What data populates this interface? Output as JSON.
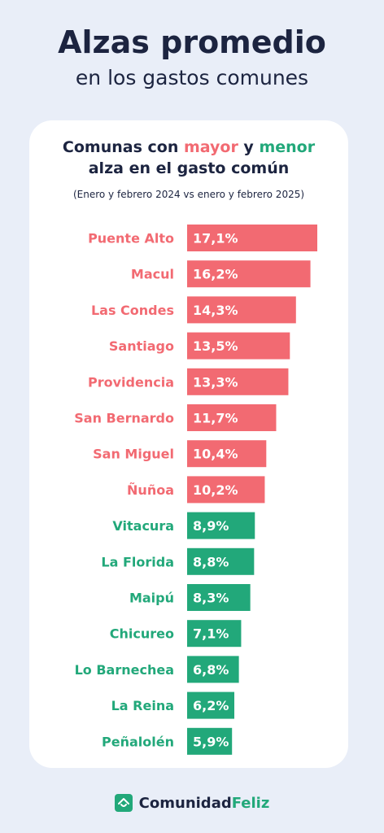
{
  "header": {
    "title": "Alzas promedio",
    "subtitle": "en los gastos comunes"
  },
  "card": {
    "heading_prefix": "Comunas con ",
    "heading_mayor": "mayor",
    "heading_and": " y ",
    "heading_menor": "menor",
    "heading_line2": "alza en el gasto común",
    "period": "(Enero y febrero 2024 vs enero y febrero 2025)"
  },
  "colors": {
    "mayor": "#f26a72",
    "menor": "#22a87a",
    "text_dark": "#1c2440"
  },
  "chart_data": {
    "type": "bar",
    "orientation": "horizontal",
    "categories": [
      "Puente Alto",
      "Macul",
      "Las Condes",
      "Santiago",
      "Providencia",
      "San Bernardo",
      "San Miguel",
      "Ñuñoa",
      "Vitacura",
      "La Florida",
      "Maipú",
      "Chicureo",
      "Lo Barnechea",
      "La Reina",
      "Peñalolén"
    ],
    "values": [
      17.1,
      16.2,
      14.3,
      13.5,
      13.3,
      11.7,
      10.4,
      10.2,
      8.9,
      8.8,
      8.3,
      7.1,
      6.8,
      6.2,
      5.9
    ],
    "value_labels": [
      "17,1%",
      "16,2%",
      "14,3%",
      "13,5%",
      "13,3%",
      "11,7%",
      "10,4%",
      "10,2%",
      "8,9%",
      "8,8%",
      "8,3%",
      "7,1%",
      "6,8%",
      "6,2%",
      "5,9%"
    ],
    "groups": [
      "mayor",
      "mayor",
      "mayor",
      "mayor",
      "mayor",
      "mayor",
      "mayor",
      "mayor",
      "menor",
      "menor",
      "menor",
      "menor",
      "menor",
      "menor",
      "menor"
    ],
    "unit": "%"
  },
  "footer": {
    "brand_part1": "Comunidad",
    "brand_part2": "Feliz",
    "logo_icon": "house-icon"
  }
}
